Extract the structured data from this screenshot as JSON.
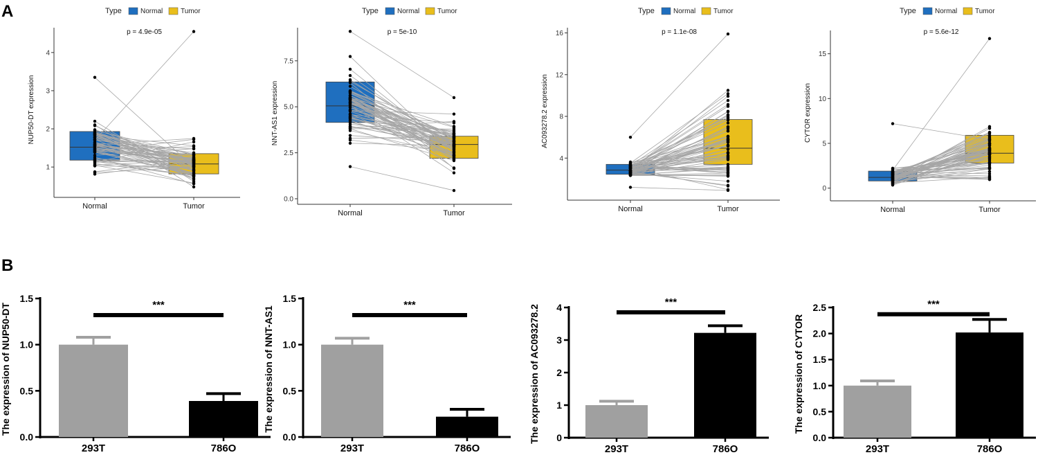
{
  "panel_labels": [
    "A",
    "B"
  ],
  "colors": {
    "normal": "#1F6FBF",
    "tumor": "#E9BE1C",
    "paired_line": "#A6A6A6",
    "point": "#000000",
    "bar_293T": "#A0A0A0",
    "bar_786O": "#000000"
  },
  "chart_data": [
    {
      "type": "box",
      "panel": "A",
      "legend_title": "Type",
      "legend_entries": [
        "Normal",
        "Tumor"
      ],
      "categories": [
        "Normal",
        "Tumor"
      ],
      "ylabel": "NUP50-DT expression",
      "pvalue": "p = 4.9e-05",
      "ylim": [
        0.35,
        4.65
      ],
      "yticks": [
        1,
        2,
        3,
        4
      ],
      "boxes": [
        {
          "name": "Normal",
          "q1": 1.18,
          "median": 1.52,
          "q3": 1.93
        },
        {
          "name": "Tumor",
          "q1": 0.82,
          "median": 1.08,
          "q3": 1.35
        }
      ],
      "outlier_pair": [
        [
          1.7,
          4.55
        ],
        [
          3.35,
          1.0
        ]
      ]
    },
    {
      "type": "box",
      "panel": "A",
      "legend_title": "Type",
      "legend_entries": [
        "Normal",
        "Tumor"
      ],
      "categories": [
        "Normal",
        "Tumor"
      ],
      "ylabel": "NNT-AS1 expression",
      "pvalue": "p = 5e-10",
      "ylim": [
        0,
        9.3
      ],
      "yticks": [
        0.0,
        2.5,
        5.0,
        7.5
      ],
      "ytick_labels": [
        "0.0",
        "2.5",
        "5.0",
        "7.5"
      ],
      "boxes": [
        {
          "name": "Normal",
          "q1": 4.15,
          "median": 5.05,
          "q3": 6.35
        },
        {
          "name": "Tumor",
          "q1": 2.2,
          "median": 2.95,
          "q3": 3.4
        }
      ],
      "outlier_pair": [
        [
          9.1,
          5.5
        ],
        [
          1.75,
          0.45
        ]
      ]
    },
    {
      "type": "box",
      "panel": "A",
      "legend_title": "Type",
      "legend_entries": [
        "Normal",
        "Tumor"
      ],
      "categories": [
        "Normal",
        "Tumor"
      ],
      "ylabel": "AC093278.2 expression",
      "pvalue": "p = 1.1e-08",
      "ylim": [
        0.5,
        16.5
      ],
      "yticks": [
        4,
        8,
        12,
        16
      ],
      "boxes": [
        {
          "name": "Normal",
          "q1": 2.45,
          "median": 2.85,
          "q3": 3.4
        },
        {
          "name": "Tumor",
          "q1": 3.4,
          "median": 4.95,
          "q3": 7.7
        }
      ],
      "outlier_pair": [
        [
          6.0,
          15.9
        ],
        [
          1.2,
          0.9
        ]
      ]
    },
    {
      "type": "box",
      "panel": "A",
      "legend_title": "Type",
      "legend_entries": [
        "Normal",
        "Tumor"
      ],
      "categories": [
        "Normal",
        "Tumor"
      ],
      "ylabel": "CYTOR expression",
      "pvalue": "p = 5.6e-12",
      "ylim": [
        -0.8,
        17.6
      ],
      "yticks": [
        0,
        5,
        10,
        15
      ],
      "boxes": [
        {
          "name": "Normal",
          "q1": 0.8,
          "median": 1.2,
          "q3": 1.9
        },
        {
          "name": "Tumor",
          "q1": 2.8,
          "median": 3.9,
          "q3": 5.9
        }
      ],
      "outlier_pair": [
        [
          2.0,
          16.7
        ],
        [
          7.2,
          5.4
        ]
      ]
    },
    {
      "type": "bar",
      "panel": "B",
      "categories": [
        "293T",
        "786O"
      ],
      "values": [
        1.0,
        0.39
      ],
      "errors": [
        0.08,
        0.08
      ],
      "ylabel": "The expression of NUP50-DT",
      "ylim": [
        0,
        1.5
      ],
      "yticks": [
        0.0,
        0.5,
        1.0,
        1.5
      ],
      "ytick_labels": [
        "0.0",
        "0.5",
        "1.0",
        "1.5"
      ],
      "significance": "***",
      "sig_level": 1.32
    },
    {
      "type": "bar",
      "panel": "B",
      "categories": [
        "293T",
        "786O"
      ],
      "values": [
        1.0,
        0.22
      ],
      "errors": [
        0.07,
        0.08
      ],
      "ylabel": "The expression of NNT-AS1",
      "ylim": [
        0,
        1.5
      ],
      "yticks": [
        0.0,
        0.5,
        1.0,
        1.5
      ],
      "ytick_labels": [
        "0.0",
        "0.5",
        "1.0",
        "1.5"
      ],
      "significance": "***",
      "sig_level": 1.32
    },
    {
      "type": "bar",
      "panel": "B",
      "categories": [
        "293T",
        "786O"
      ],
      "values": [
        1.0,
        3.22
      ],
      "errors": [
        0.12,
        0.22
      ],
      "ylabel": "The expression of AC093278.2",
      "ylim": [
        0,
        4
      ],
      "yticks": [
        0,
        1,
        2,
        3,
        4
      ],
      "significance": "***",
      "sig_level": 3.85
    },
    {
      "type": "bar",
      "panel": "B",
      "categories": [
        "293T",
        "786O"
      ],
      "values": [
        1.0,
        2.02
      ],
      "errors": [
        0.09,
        0.25
      ],
      "ylabel": "The expression of CYTOR",
      "ylim": [
        0,
        2.5
      ],
      "yticks": [
        0.0,
        0.5,
        1.0,
        1.5,
        2.0,
        2.5
      ],
      "ytick_labels": [
        "0.0",
        "0.5",
        "1.0",
        "1.5",
        "2.0",
        "2.5"
      ],
      "significance": "***",
      "sig_level": 2.37
    }
  ]
}
